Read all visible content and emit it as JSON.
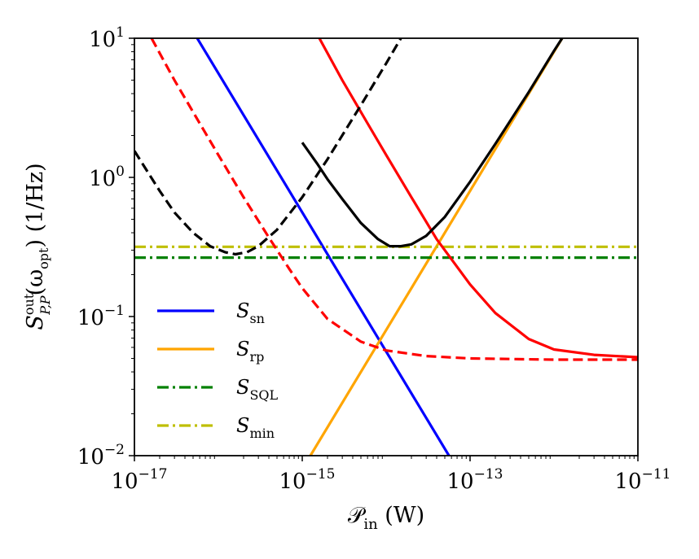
{
  "chart_data": {
    "type": "line",
    "xscale": "log",
    "yscale": "log",
    "xlim": [
      1e-17,
      1e-11
    ],
    "ylim": [
      0.01,
      10
    ],
    "xticks": [
      {
        "value": 1e-17,
        "base": "10",
        "exp": "−17"
      },
      {
        "value": 1e-15,
        "base": "10",
        "exp": "−15"
      },
      {
        "value": 1e-13,
        "base": "10",
        "exp": "−13"
      },
      {
        "value": 1e-11,
        "base": "10",
        "exp": "−11"
      }
    ],
    "yticks": [
      {
        "value": 0.01,
        "base": "10",
        "exp": "−2"
      },
      {
        "value": 0.1,
        "base": "10",
        "exp": "−1"
      },
      {
        "value": 1,
        "base": "10",
        "exp": "0"
      },
      {
        "value": 10,
        "base": "10",
        "exp": "1"
      }
    ],
    "xlabel": {
      "symbol": "𝒫",
      "sub": "in",
      "unit": "(W)"
    },
    "ylabel": {
      "symbol": "S",
      "sup": "out",
      "sub": "P,P",
      "arg": "(ω",
      "argsub": "opt",
      "argclose": ")",
      "unit": "(1/Hz)"
    },
    "legend_position": "lower-left",
    "series": [
      {
        "name": "S_sn",
        "label_main": "S",
        "label_sub": "sn",
        "color": "#0000ff",
        "style": "solid",
        "in_legend": true,
        "x": [
          5.6e-17,
          5.6e-14
        ],
        "y": [
          10,
          0.01
        ]
      },
      {
        "name": "S_rp",
        "label_main": "S",
        "label_sub": "rp",
        "color": "#ffa500",
        "style": "solid",
        "in_legend": true,
        "x": [
          1.25e-15,
          1.25e-12
        ],
        "y": [
          0.01,
          10
        ]
      },
      {
        "name": "S_SQL",
        "label_main": "S",
        "label_sub": "SQL",
        "color": "#008000",
        "style": "dashdot",
        "in_legend": true,
        "x": [
          1e-17,
          1e-11
        ],
        "y": [
          0.265,
          0.265
        ]
      },
      {
        "name": "S_min",
        "label_main": "S",
        "label_sub": "min",
        "color": "#bfbf00",
        "style": "dashdot",
        "in_legend": true,
        "x": [
          1e-17,
          1e-11
        ],
        "y": [
          0.317,
          0.317
        ]
      },
      {
        "name": "red-solid",
        "color": "#ff0000",
        "style": "solid",
        "in_legend": false,
        "x": [
          1.6e-15,
          3e-15,
          6e-15,
          1e-14,
          2e-14,
          4e-14,
          1e-13,
          2e-13,
          5e-13,
          1e-12,
          3e-12,
          1e-11
        ],
        "y": [
          10,
          5,
          2.45,
          1.45,
          0.72,
          0.36,
          0.17,
          0.106,
          0.069,
          0.058,
          0.053,
          0.051
        ]
      },
      {
        "name": "red-dashed",
        "color": "#ff0000",
        "style": "dashed",
        "in_legend": false,
        "x": [
          1.6e-17,
          3e-17,
          6e-17,
          1e-16,
          2e-16,
          4e-16,
          7e-16,
          1e-15,
          2e-15,
          5e-15,
          1e-14,
          3e-14,
          1e-13,
          1e-12,
          1e-11
        ],
        "y": [
          10,
          5,
          2.45,
          1.45,
          0.72,
          0.37,
          0.22,
          0.16,
          0.096,
          0.066,
          0.057,
          0.052,
          0.05,
          0.049,
          0.049
        ]
      },
      {
        "name": "black-solid",
        "color": "#000000",
        "style": "solid",
        "in_legend": false,
        "x": [
          1e-15,
          1.5e-15,
          2e-15,
          3e-15,
          5e-15,
          8e-15,
          1.1e-14,
          1.5e-14,
          2e-14,
          3e-14,
          5e-14,
          1e-13,
          2e-13,
          5e-13,
          1e-12,
          1.25e-12
        ],
        "y": [
          1.78,
          1.26,
          0.97,
          0.7,
          0.47,
          0.36,
          0.32,
          0.32,
          0.33,
          0.38,
          0.52,
          0.93,
          1.74,
          4.1,
          8.1,
          10
        ]
      },
      {
        "name": "black-dashed",
        "color": "#000000",
        "style": "dashed",
        "in_legend": false,
        "x": [
          1e-17,
          2e-17,
          3e-17,
          5e-17,
          8e-17,
          1.2e-16,
          1.6e-16,
          2.2e-16,
          3e-16,
          5e-16,
          1e-15,
          2e-15,
          5e-15,
          1e-14,
          1.5e-14
        ],
        "y": [
          1.55,
          0.8,
          0.56,
          0.4,
          0.32,
          0.29,
          0.28,
          0.29,
          0.32,
          0.42,
          0.72,
          1.35,
          3.3,
          6.6,
          10
        ]
      }
    ]
  }
}
